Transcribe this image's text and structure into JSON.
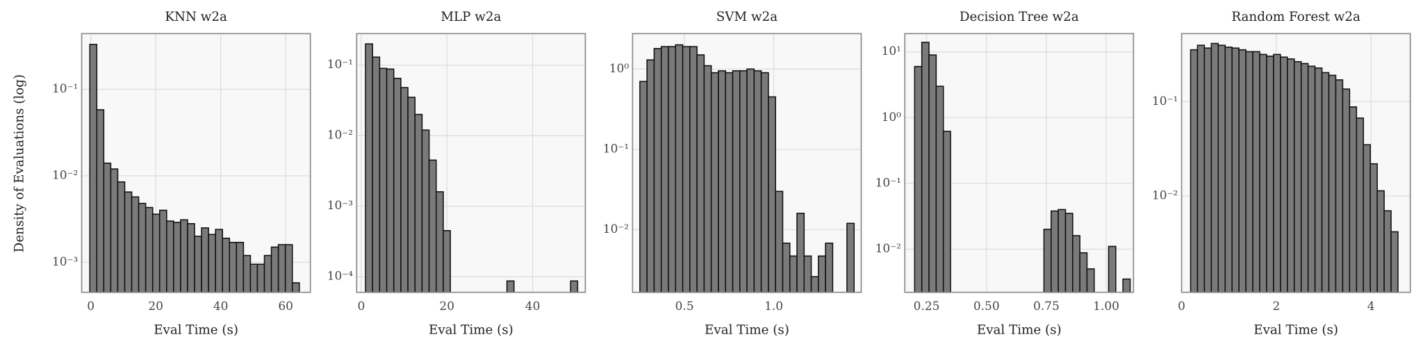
{
  "chart_data": [
    {
      "type": "histogram",
      "title": "KNN w2a",
      "xlabel": "Eval Time (s)",
      "ylabel": "Density of Evaluations (log)",
      "bins": [
        -0.3,
        1.85,
        4,
        6.15,
        8.3,
        10.45,
        12.6,
        14.75,
        16.9,
        19.05,
        21.2,
        23.35,
        25.5,
        27.65,
        29.8,
        31.95,
        34.1,
        36.25,
        38.4,
        40.55,
        42.7,
        44.85,
        47,
        49.15,
        51.3,
        53.45,
        55.6,
        57.75,
        59.9,
        62.05,
        64.2
      ],
      "values": [
        0.33,
        0.058,
        0.014,
        0.012,
        0.0085,
        0.0065,
        0.0057,
        0.0048,
        0.0043,
        0.0036,
        0.004,
        0.003,
        0.0029,
        0.0031,
        0.0028,
        0.002,
        0.0025,
        0.0021,
        0.0024,
        0.0019,
        0.0017,
        0.0017,
        0.0012,
        0.00095,
        0.00095,
        0.0012,
        0.0015,
        0.0016,
        0.0016,
        0.00058
      ],
      "xlim": [
        -2.8,
        67.6
      ],
      "ylim": [
        0.00045,
        0.44
      ],
      "log_y": true,
      "grid": true,
      "color": "#7a7a7a",
      "edgecolor": "#111111",
      "xticks": [
        0,
        20,
        40,
        60
      ],
      "yticks": [
        {
          "value": 0.001,
          "label": "10⁻³"
        },
        {
          "value": 0.01,
          "label": "10⁻²"
        },
        {
          "value": 0.1,
          "label": "10⁻¹"
        }
      ]
    },
    {
      "type": "histogram",
      "title": "MLP w2a",
      "xlabel": "Eval Time (s)",
      "bins": [
        1,
        2.65,
        4.3,
        5.95,
        7.6,
        9.25,
        10.9,
        12.55,
        14.2,
        15.85,
        17.5,
        19.15,
        20.8,
        22.45,
        24.1,
        25.75,
        27.4,
        29.05,
        30.7,
        32.35,
        34,
        35.65,
        37.3,
        38.95,
        40.6,
        42.25,
        43.9,
        45.55,
        47.2,
        48.85,
        50.5
      ],
      "values": [
        0.2,
        0.13,
        0.09,
        0.088,
        0.065,
        0.048,
        0.035,
        0.02,
        0.012,
        0.0045,
        0.0016,
        0.00045,
        0,
        0,
        0,
        0,
        0,
        0,
        0,
        0,
        8.7e-05,
        0,
        0,
        0,
        0,
        0,
        0,
        0,
        0,
        8.7e-05
      ],
      "xlim": [
        -1.06,
        52.3
      ],
      "ylim": [
        6e-05,
        0.28
      ],
      "log_y": true,
      "grid": true,
      "color": "#7a7a7a",
      "edgecolor": "#111111",
      "xticks": [
        0,
        20,
        40
      ],
      "yticks": [
        {
          "value": 0.0001,
          "label": "10⁻⁴"
        },
        {
          "value": 0.001,
          "label": "10⁻³"
        },
        {
          "value": 0.01,
          "label": "10⁻²"
        },
        {
          "value": 0.1,
          "label": "10⁻¹"
        }
      ]
    },
    {
      "type": "histogram",
      "title": "SVM w2a",
      "xlabel": "Eval Time (s)",
      "bins": [
        0.25,
        0.29,
        0.33,
        0.37,
        0.41,
        0.45,
        0.49,
        0.53,
        0.57,
        0.61,
        0.65,
        0.69,
        0.73,
        0.77,
        0.81,
        0.85,
        0.89,
        0.93,
        0.97,
        1.01,
        1.05,
        1.09,
        1.13,
        1.17,
        1.21,
        1.25,
        1.29,
        1.33,
        1.37,
        1.41,
        1.45
      ],
      "values": [
        0.7,
        1.3,
        1.8,
        1.9,
        1.9,
        2.0,
        1.9,
        1.9,
        1.5,
        1.1,
        0.9,
        0.95,
        0.9,
        0.95,
        0.95,
        1.0,
        0.95,
        0.9,
        0.45,
        0.03,
        0.0068,
        0.0047,
        0.016,
        0.0047,
        0.0026,
        0.0047,
        0.0068,
        0,
        0,
        0.012
      ],
      "xlim": [
        0.209,
        1.49
      ],
      "ylim": [
        0.00166,
        2.76
      ],
      "log_y": true,
      "grid": true,
      "color": "#7a7a7a",
      "edgecolor": "#111111",
      "xticks": [
        0.5,
        {
          "value": 1,
          "label": "1.0"
        }
      ],
      "yticks": [
        {
          "value": 0.01,
          "label": "10⁻²"
        },
        {
          "value": 0.1,
          "label": "10⁻¹"
        },
        {
          "value": 1,
          "label": "10⁰"
        }
      ]
    },
    {
      "type": "histogram",
      "title": "Decision Tree w2a",
      "xlabel": "Eval Time (s)",
      "bins": [
        0.2,
        0.23,
        0.26,
        0.29,
        0.32,
        0.35,
        0.38,
        0.41,
        0.44,
        0.47,
        0.5,
        0.53,
        0.56,
        0.59,
        0.62,
        0.65,
        0.68,
        0.71,
        0.74,
        0.77,
        0.8,
        0.83,
        0.86,
        0.89,
        0.92,
        0.95,
        0.98,
        1.01,
        1.04,
        1.07,
        1.1
      ],
      "values": [
        6,
        14,
        9,
        3,
        0.62,
        0,
        0,
        0,
        0,
        0,
        0,
        0,
        0,
        0,
        0,
        0,
        0,
        0,
        0.02,
        0.038,
        0.04,
        0.035,
        0.016,
        0.0088,
        0.005,
        0,
        0,
        0.011,
        0,
        0.0035
      ],
      "xlim": [
        0.159,
        1.114
      ],
      "ylim": [
        0.0022,
        19
      ],
      "log_y": true,
      "grid": true,
      "color": "#7a7a7a",
      "edgecolor": "#111111",
      "xticks": [
        0.25,
        {
          "value": 0.5,
          "label": "0.50"
        },
        0.75,
        {
          "value": 1,
          "label": "1.00"
        }
      ],
      "yticks": [
        {
          "value": 0.01,
          "label": "10⁻²"
        },
        {
          "value": 0.1,
          "label": "10⁻¹"
        },
        {
          "value": 1,
          "label": "10⁰"
        },
        {
          "value": 10,
          "label": "10¹"
        }
      ]
    },
    {
      "type": "histogram",
      "title": "Random Forest w2a",
      "xlabel": "Eval Time (s)",
      "bins": [
        0.19,
        0.336,
        0.482,
        0.628,
        0.774,
        0.92,
        1.066,
        1.212,
        1.358,
        1.504,
        1.65,
        1.796,
        1.942,
        2.088,
        2.234,
        2.38,
        2.526,
        2.672,
        2.818,
        2.964,
        3.11,
        3.256,
        3.402,
        3.548,
        3.694,
        3.84,
        3.986,
        4.132,
        4.278,
        4.424,
        4.57
      ],
      "values": [
        0.354,
        0.395,
        0.369,
        0.413,
        0.395,
        0.377,
        0.369,
        0.354,
        0.338,
        0.338,
        0.316,
        0.303,
        0.316,
        0.296,
        0.283,
        0.265,
        0.253,
        0.237,
        0.227,
        0.203,
        0.19,
        0.17,
        0.136,
        0.088,
        0.067,
        0.035,
        0.022,
        0.0114,
        0.007,
        0.0042
      ],
      "xlim": [
        0,
        4.83
      ],
      "ylim": [
        0.00096,
        0.525
      ],
      "log_y": true,
      "grid": true,
      "color": "#7a7a7a",
      "edgecolor": "#111111",
      "xticks": [
        0,
        2,
        4
      ],
      "yticks": [
        {
          "value": 0.01,
          "label": "10⁻²"
        },
        {
          "value": 0.1,
          "label": "10⁻¹"
        }
      ]
    }
  ]
}
